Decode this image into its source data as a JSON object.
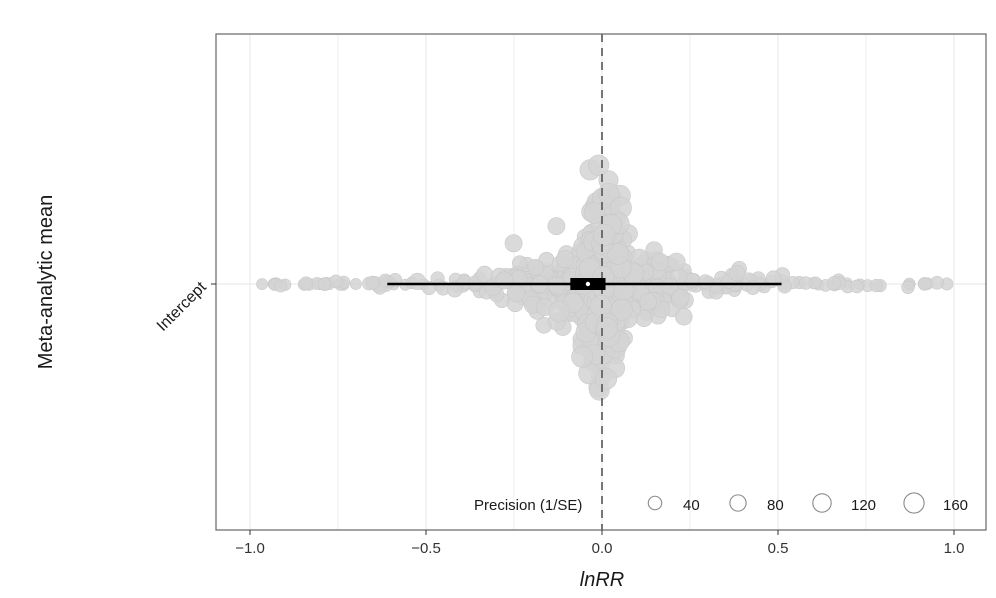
{
  "chart_data": {
    "type": "scatter",
    "subtype": "orchard-plot",
    "xlabel": "lnRR",
    "ylabel": "Meta-analytic mean",
    "categories": [
      "Intercept"
    ],
    "xlim": [
      -1.05,
      1.05
    ],
    "xticks": [
      -1.0,
      -0.5,
      0.0,
      0.5,
      1.0
    ],
    "xtick_labels": [
      "−1.0",
      "−0.5",
      "0.0",
      "0.5",
      "1.0"
    ],
    "reference_line_x": 0,
    "grid": true,
    "estimate": {
      "mean": -0.04,
      "ci": [
        -0.09,
        0.01
      ],
      "pi": [
        -0.61,
        0.51
      ]
    },
    "points": {
      "count": 650,
      "color": "#d3d3d3",
      "x_range": [
        -0.98,
        0.98
      ],
      "precision_range": [
        20,
        170
      ]
    },
    "legend": {
      "title": "Precision (1/SE)",
      "position": "bottom-right",
      "entries": [
        40,
        80,
        120,
        160
      ],
      "entry_labels": [
        "40",
        "80",
        "120",
        "160"
      ]
    },
    "colors": {
      "points": "#d3d3d3",
      "estimate": "#000000",
      "zero_line": "#555555",
      "grid": "#ebebeb",
      "panel_border": "#666666"
    }
  }
}
